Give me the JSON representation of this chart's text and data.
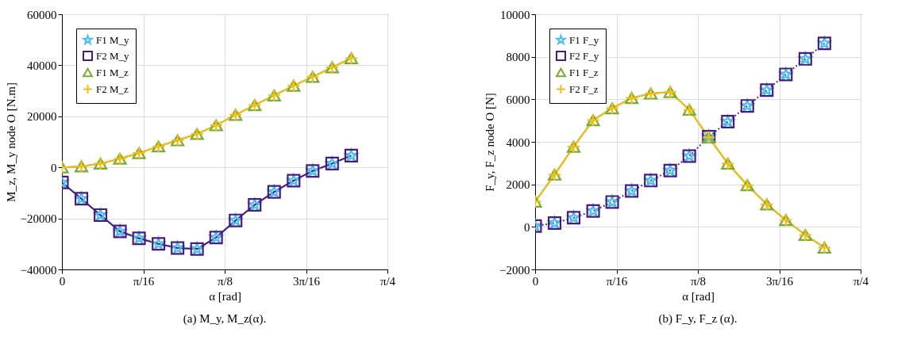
{
  "chart_data": [
    {
      "type": "line",
      "title": "(a) M_y, M_z(α).",
      "xlabel": "α [rad]",
      "ylabel": "M_z, M_y node O [N.m]",
      "x": [
        0,
        0.047,
        0.093,
        0.14,
        0.186,
        0.233,
        0.279,
        0.326,
        0.372,
        0.419,
        0.465,
        0.512,
        0.559,
        0.605,
        0.652,
        0.698
      ],
      "xlim": [
        0,
        0.785398
      ],
      "xticks": [
        {
          "value": 0,
          "label": "0"
        },
        {
          "value": 0.19635,
          "label": "π/16"
        },
        {
          "value": 0.392699,
          "label": "π/8"
        },
        {
          "value": 0.589049,
          "label": "3π/16"
        },
        {
          "value": 0.785398,
          "label": "π/4"
        }
      ],
      "ylim": [
        -40000,
        60000
      ],
      "yticks": [
        -40000,
        -20000,
        0,
        20000,
        40000,
        60000
      ],
      "grid": true,
      "legend": "top left",
      "series": [
        {
          "name": "F1 M_y",
          "color": "#4dbeee",
          "marker": "star",
          "line_style": "solid",
          "values": [
            -5900,
            -12300,
            -18700,
            -25100,
            -27800,
            -30000,
            -31600,
            -32000,
            -27500,
            -20800,
            -14700,
            -9600,
            -5200,
            -1400,
            1500,
            4600
          ]
        },
        {
          "name": "F2 M_y",
          "color": "#4b1a7f",
          "marker": "square",
          "line_style": "solid",
          "values": [
            -5900,
            -12300,
            -18700,
            -25100,
            -27800,
            -30000,
            -31600,
            -32000,
            -27500,
            -20800,
            -14700,
            -9600,
            -5200,
            -1400,
            1500,
            4600
          ]
        },
        {
          "name": "F1 M_z",
          "color": "#77ac30",
          "marker": "triangle",
          "line_style": "solid",
          "values": [
            0,
            400,
            1500,
            3400,
            5600,
            8200,
            10600,
            13100,
            16500,
            20600,
            24400,
            28200,
            32000,
            35500,
            39200,
            42800
          ]
        },
        {
          "name": "F2 M_z",
          "color": "#f5bd14",
          "marker": "cross",
          "line_style": "solid",
          "values": [
            0,
            400,
            1500,
            3400,
            5600,
            8200,
            10600,
            13100,
            16500,
            20600,
            24400,
            28200,
            32000,
            35500,
            39200,
            42800
          ]
        }
      ]
    },
    {
      "type": "line",
      "title": "(b) F_y, F_z (α).",
      "xlabel": "α [rad]",
      "ylabel": "F_y, F_z node O [N]",
      "x": [
        0,
        0.047,
        0.093,
        0.14,
        0.186,
        0.233,
        0.279,
        0.326,
        0.372,
        0.419,
        0.465,
        0.512,
        0.559,
        0.605,
        0.652,
        0.698
      ],
      "xlim": [
        0,
        0.785398
      ],
      "xticks": [
        {
          "value": 0,
          "label": "0"
        },
        {
          "value": 0.19635,
          "label": "π/16"
        },
        {
          "value": 0.392699,
          "label": "π/8"
        },
        {
          "value": 0.589049,
          "label": "3π/16"
        },
        {
          "value": 0.785398,
          "label": "π/4"
        }
      ],
      "ylim": [
        -2000,
        10000
      ],
      "yticks": [
        -2000,
        0,
        2000,
        4000,
        6000,
        8000,
        10000
      ],
      "grid": true,
      "legend": "top left",
      "series": [
        {
          "name": "F1 F_y",
          "color": "#4dbeee",
          "marker": "star",
          "line_style": "dotted",
          "values": [
            40,
            180,
            430,
            750,
            1170,
            1690,
            2180,
            2650,
            3330,
            4240,
            4950,
            5690,
            6430,
            7170,
            7900,
            8630
          ]
        },
        {
          "name": "F2 F_y",
          "color": "#4b1a7f",
          "marker": "square",
          "line_style": "dotted",
          "values": [
            40,
            180,
            430,
            750,
            1170,
            1690,
            2180,
            2650,
            3330,
            4240,
            4950,
            5690,
            6430,
            7170,
            7900,
            8630
          ]
        },
        {
          "name": "F1 F_z",
          "color": "#77ac30",
          "marker": "triangle",
          "line_style": "solid",
          "values": [
            1190,
            2460,
            3770,
            5020,
            5580,
            6060,
            6270,
            6340,
            5510,
            4210,
            2980,
            1960,
            1060,
            320,
            -380,
            -970
          ]
        },
        {
          "name": "F2 F_z",
          "color": "#f5bd14",
          "marker": "cross",
          "line_style": "solid",
          "values": [
            1190,
            2460,
            3770,
            5020,
            5580,
            6060,
            6270,
            6340,
            5510,
            4210,
            2980,
            1960,
            1060,
            320,
            -380,
            -970
          ]
        }
      ]
    }
  ]
}
